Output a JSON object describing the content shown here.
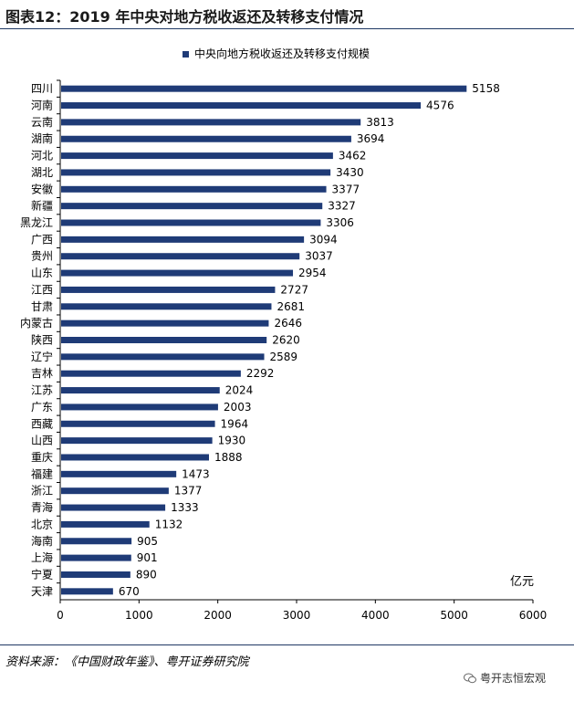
{
  "title": "图表12：2019 年中央对地方税收返还及转移支付情况",
  "source": "资料来源：《中国财政年鉴》、粤开证券研究院",
  "watermark": "粤开志恒宏观",
  "colors": {
    "bar": "#1f3b77",
    "rule": "#1f3864"
  },
  "chart_data": {
    "type": "bar",
    "orientation": "horizontal",
    "legend": "中央向地方税收返还及转移支付规模",
    "legend_position": "top",
    "unit_label": "亿元",
    "xlim": [
      0,
      6000
    ],
    "xticks": [
      0,
      1000,
      2000,
      3000,
      4000,
      5000,
      6000
    ],
    "grid": false,
    "categories": [
      "四川",
      "河南",
      "云南",
      "湖南",
      "河北",
      "湖北",
      "安徽",
      "新疆",
      "黑龙江",
      "广西",
      "贵州",
      "山东",
      "江西",
      "甘肃",
      "内蒙古",
      "陕西",
      "辽宁",
      "吉林",
      "江苏",
      "广东",
      "西藏",
      "山西",
      "重庆",
      "福建",
      "浙江",
      "青海",
      "北京",
      "海南",
      "上海",
      "宁夏",
      "天津"
    ],
    "values": [
      5158,
      4576,
      3813,
      3694,
      3462,
      3430,
      3377,
      3327,
      3306,
      3094,
      3037,
      2954,
      2727,
      2681,
      2646,
      2620,
      2589,
      2292,
      2024,
      2003,
      1964,
      1930,
      1888,
      1473,
      1377,
      1333,
      1132,
      905,
      901,
      890,
      670
    ]
  }
}
